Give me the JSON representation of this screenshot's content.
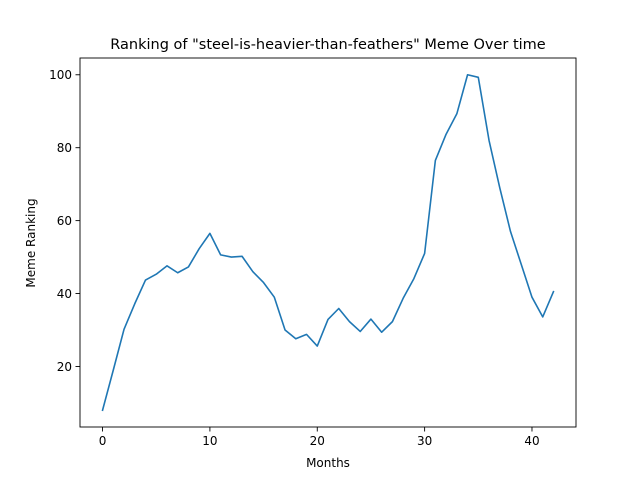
{
  "chart_data": {
    "type": "line",
    "title": "Ranking of \"steel-is-heavier-than-feathers\" Meme Over time",
    "xlabel": "Months",
    "ylabel": "Meme Ranking",
    "xlim": [
      -2.1,
      44.1
    ],
    "ylim": [
      3.4,
      104.6
    ],
    "xticks": [
      0,
      10,
      20,
      30,
      40
    ],
    "yticks": [
      20,
      40,
      60,
      80,
      100
    ],
    "grid": false,
    "legend": "none",
    "series": [
      {
        "name": "ranking",
        "color": "#1f77b4",
        "x": [
          0,
          1,
          2,
          3,
          4,
          5,
          6,
          7,
          8,
          9,
          10,
          11,
          12,
          13,
          14,
          15,
          16,
          17,
          18,
          19,
          20,
          21,
          22,
          23,
          24,
          25,
          26,
          27,
          28,
          29,
          30,
          31,
          32,
          33,
          34,
          35,
          36,
          37,
          38,
          39,
          40,
          41,
          42
        ],
        "values": [
          8,
          19,
          30.2,
          37.2,
          43.7,
          45.3,
          47.6,
          45.7,
          47.3,
          52.3,
          56.5,
          50.6,
          50,
          50.2,
          46,
          43,
          39,
          30,
          27.6,
          28.8,
          25.6,
          32.9,
          35.9,
          32.3,
          29.6,
          33,
          29.4,
          32.3,
          38.7,
          44.1,
          51,
          76.5,
          83.7,
          89.3,
          100,
          99.3,
          82,
          69,
          57,
          48,
          39,
          33.6,
          40.5
        ]
      }
    ]
  }
}
